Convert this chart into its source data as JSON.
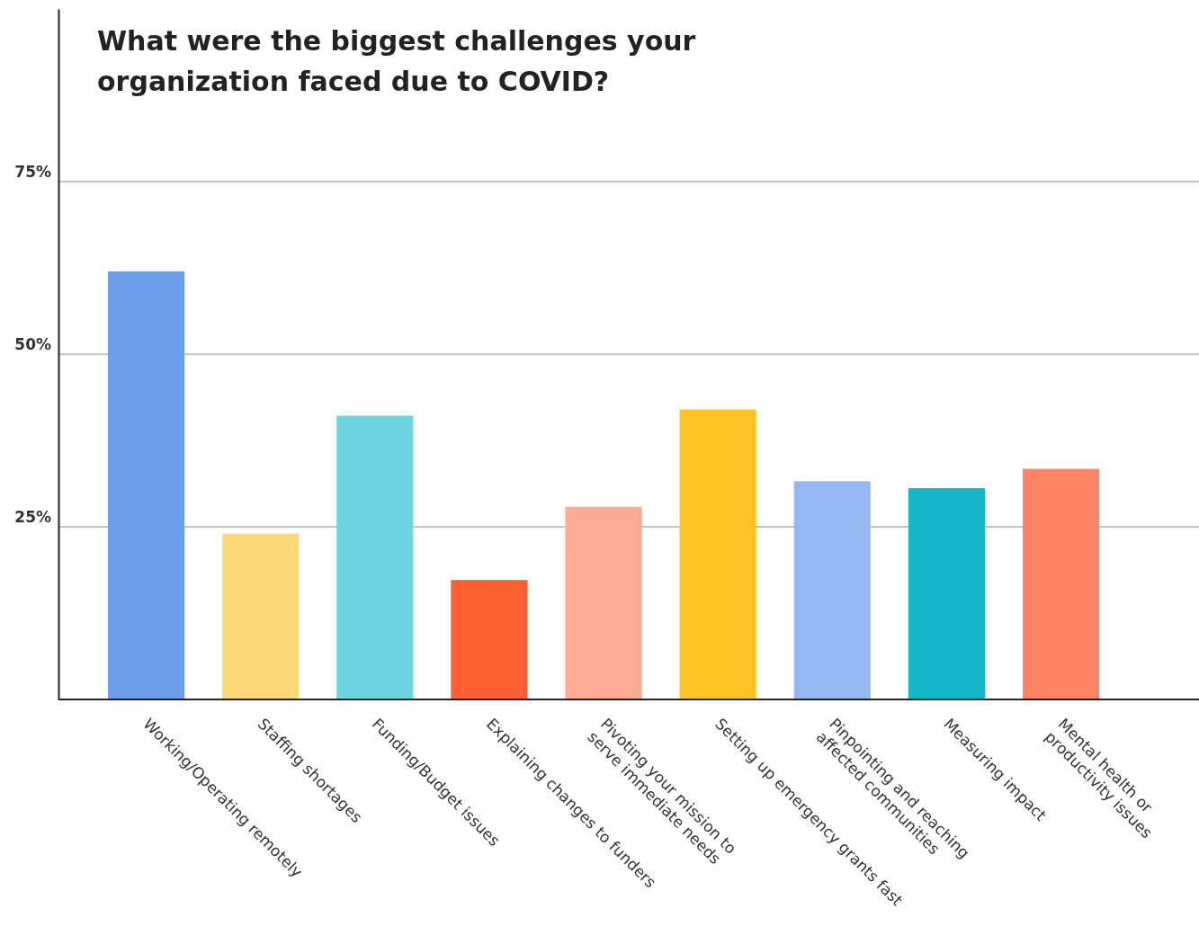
{
  "chart_data": {
    "type": "bar",
    "title": "What were the biggest challenges your\norganization faced due to COVID?",
    "categories": [
      "Working/Operating remotely",
      "Staffing shortages",
      "Funding/Budget issues",
      "Explaining changes to funders",
      "Pivoting your mission to\nserve immediate needs",
      "Setting up emergency grants fast",
      "Pinpointing and reaching\naffected communities",
      "Measuring impact",
      "Mental health or\nproductivity issues"
    ],
    "values": [
      62.0,
      24.0,
      41.1,
      17.3,
      27.9,
      42.0,
      31.6,
      30.6,
      33.4
    ],
    "colors": [
      "#6d9eeb",
      "#fdd978",
      "#6fd5e0",
      "#fe5f32",
      "#fcab95",
      "#fec324",
      "#96b7f2",
      "#12b6c6",
      "#fd8467"
    ],
    "ylim": [
      0,
      100
    ],
    "yticks": [
      {
        "value": 25,
        "label": "25%"
      },
      {
        "value": 50,
        "label": "50%"
      },
      {
        "value": 75,
        "label": "75%"
      }
    ],
    "grid": "y"
  }
}
